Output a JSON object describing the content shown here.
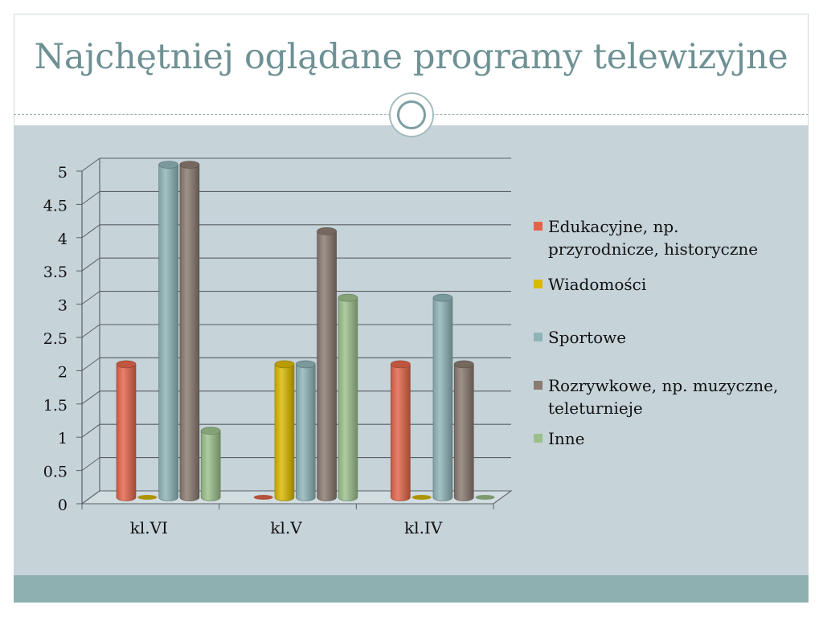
{
  "slide": {
    "title": "Najchętniej oglądane programy telewizyjne"
  },
  "chart_data": {
    "type": "bar",
    "categories": [
      "kl.VI",
      "kl.V",
      "kl.IV"
    ],
    "series": [
      {
        "name": "Edukacyjne, np. przyrodnicze, historyczne",
        "values": [
          2,
          0,
          2
        ],
        "color": "#e2654a"
      },
      {
        "name": "Wiadomości",
        "values": [
          0,
          2,
          0
        ],
        "color": "#d9b800"
      },
      {
        "name": "Sportowe",
        "values": [
          5,
          2,
          3
        ],
        "color": "#8fb4b8"
      },
      {
        "name": "Rozrywkowe, np. muzyczne, teleturnieje",
        "values": [
          5,
          4,
          2
        ],
        "color": "#8a7a70"
      },
      {
        "name": "Inne",
        "values": [
          1,
          3,
          0
        ],
        "color": "#9cbf8c"
      }
    ],
    "y_ticks": [
      "0",
      "0.5",
      "1",
      "1.5",
      "2",
      "2.5",
      "3",
      "3.5",
      "4",
      "4.5",
      "5"
    ],
    "ylim": [
      0,
      5
    ],
    "grid": true,
    "legend_position": "right",
    "title": "",
    "xlabel": "",
    "ylabel": ""
  }
}
